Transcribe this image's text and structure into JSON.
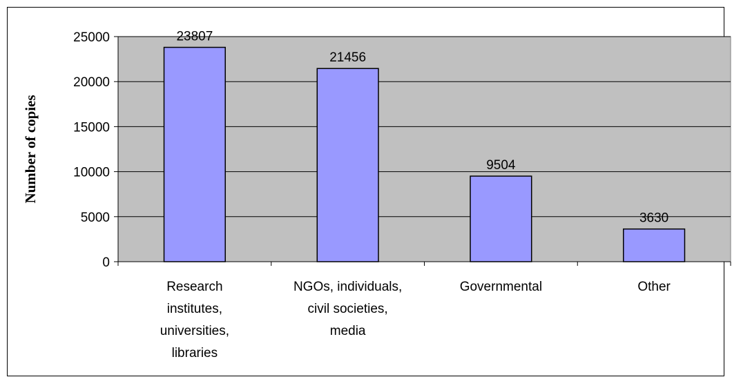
{
  "chart_data": {
    "type": "bar",
    "title": "",
    "xlabel": "",
    "ylabel": "Number of copies",
    "ylim": [
      0,
      25000
    ],
    "yticks": [
      "0",
      "5000",
      "10000",
      "15000",
      "20000",
      "25000"
    ],
    "categories": [
      [
        "Research",
        "institutes,",
        "universities,",
        "libraries"
      ],
      [
        "NGOs, individuals,",
        "civil societies,",
        "media"
      ],
      [
        "Governmental"
      ],
      [
        "Other"
      ]
    ],
    "values": [
      23807,
      21456,
      9504,
      3630
    ],
    "data_labels": [
      "23807",
      "21456",
      "9504",
      "3630"
    ],
    "grid": true,
    "legend": "none",
    "colors": {
      "bar_fill": "#9999ff",
      "bar_stroke": "#000000",
      "plot_background": "#c0c0c0",
      "gridline": "#000000"
    }
  }
}
